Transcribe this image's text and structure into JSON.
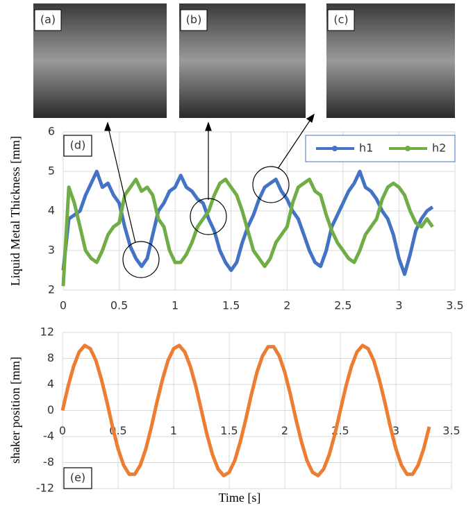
{
  "photos": [
    "(a)",
    "(b)",
    "(c)"
  ],
  "chart_data": [
    {
      "type": "line",
      "annotation": "(d)",
      "y_label": "Liquid Metal Thickness [mm]",
      "x": [
        0,
        0.05,
        0.1,
        0.15,
        0.2,
        0.25,
        0.3,
        0.35,
        0.4,
        0.45,
        0.5,
        0.55,
        0.6,
        0.65,
        0.7,
        0.75,
        0.8,
        0.85,
        0.9,
        0.95,
        1,
        1.05,
        1.1,
        1.15,
        1.2,
        1.25,
        1.3,
        1.35,
        1.4,
        1.45,
        1.5,
        1.55,
        1.6,
        1.65,
        1.7,
        1.75,
        1.8,
        1.85,
        1.9,
        1.95,
        2,
        2.05,
        2.1,
        2.15,
        2.2,
        2.25,
        2.3,
        2.35,
        2.4,
        2.45,
        2.5,
        2.55,
        2.6,
        2.65,
        2.7,
        2.75,
        2.8,
        2.85,
        2.9,
        2.95,
        3,
        3.05,
        3.1,
        3.15,
        3.2,
        3.25,
        3.3
      ],
      "series": [
        {
          "name": "h1",
          "color": "#4472c4",
          "values": [
            2.5,
            3.8,
            3.9,
            4.0,
            4.4,
            4.7,
            5.0,
            4.6,
            4.7,
            4.4,
            4.2,
            3.6,
            3.1,
            2.8,
            2.6,
            2.8,
            3.4,
            4.0,
            4.2,
            4.5,
            4.6,
            4.9,
            4.6,
            4.5,
            4.3,
            4.2,
            3.8,
            3.5,
            3.0,
            2.7,
            2.5,
            2.7,
            3.2,
            3.6,
            3.9,
            4.3,
            4.6,
            4.7,
            4.8,
            4.5,
            4.3,
            4.0,
            3.8,
            3.4,
            3.0,
            2.7,
            2.6,
            3.0,
            3.6,
            3.9,
            4.2,
            4.5,
            4.7,
            5.0,
            4.6,
            4.5,
            4.3,
            4.0,
            3.8,
            3.4,
            2.8,
            2.4,
            2.9,
            3.5,
            3.8,
            4.0,
            4.1
          ]
        },
        {
          "name": "h2",
          "color": "#70ad47",
          "values": [
            2.1,
            4.6,
            4.2,
            3.6,
            3.0,
            2.8,
            2.7,
            3.0,
            3.4,
            3.6,
            3.7,
            4.4,
            4.6,
            4.8,
            4.5,
            4.6,
            4.4,
            3.8,
            3.6,
            3.0,
            2.7,
            2.7,
            2.9,
            3.2,
            3.6,
            3.8,
            4.0,
            4.4,
            4.7,
            4.8,
            4.6,
            4.4,
            4.0,
            3.5,
            3.0,
            2.8,
            2.6,
            2.8,
            3.2,
            3.4,
            3.6,
            4.2,
            4.6,
            4.7,
            4.8,
            4.5,
            4.4,
            3.9,
            3.5,
            3.2,
            3.0,
            2.8,
            2.7,
            3.0,
            3.4,
            3.6,
            3.8,
            4.3,
            4.6,
            4.7,
            4.6,
            4.4,
            4.0,
            3.7,
            3.6,
            3.8,
            3.6
          ]
        }
      ],
      "xlim": [
        0,
        3.5
      ],
      "xticks": [
        0,
        0.5,
        1,
        1.5,
        2,
        2.5,
        3,
        3.5
      ],
      "ylim": [
        2,
        6
      ],
      "yticks": [
        2,
        3,
        4,
        5,
        6
      ],
      "grid": true,
      "legend": "top-right"
    },
    {
      "type": "line",
      "annotation": "(e)",
      "y_label": "shaker position [mm]",
      "x_label": "Time [s]",
      "x": [
        0,
        0.05,
        0.1,
        0.15,
        0.2,
        0.25,
        0.3,
        0.35,
        0.4,
        0.45,
        0.5,
        0.55,
        0.6,
        0.65,
        0.7,
        0.75,
        0.8,
        0.85,
        0.9,
        0.95,
        1,
        1.05,
        1.1,
        1.15,
        1.2,
        1.25,
        1.3,
        1.35,
        1.4,
        1.45,
        1.5,
        1.55,
        1.6,
        1.65,
        1.7,
        1.75,
        1.8,
        1.85,
        1.9,
        1.95,
        2,
        2.05,
        2.1,
        2.15,
        2.2,
        2.25,
        2.3,
        2.35,
        2.4,
        2.45,
        2.5,
        2.55,
        2.6,
        2.65,
        2.7,
        2.75,
        2.8,
        2.85,
        2.9,
        2.95,
        3,
        3.05,
        3.1,
        3.15,
        3.2,
        3.25,
        3.3
      ],
      "series": [
        {
          "color": "#ed7d31",
          "values": [
            0,
            3.7,
            6.8,
            9.0,
            10.0,
            9.5,
            7.7,
            4.8,
            1.3,
            -2.5,
            -5.9,
            -8.4,
            -9.8,
            -9.8,
            -8.4,
            -5.9,
            -2.5,
            1.3,
            4.8,
            7.7,
            9.5,
            10.0,
            9.0,
            6.8,
            3.7,
            0,
            -3.7,
            -6.8,
            -9.0,
            -10.0,
            -9.5,
            -7.7,
            -4.8,
            -1.3,
            2.5,
            5.9,
            8.4,
            9.8,
            9.8,
            8.4,
            5.9,
            2.5,
            -1.3,
            -4.8,
            -7.7,
            -9.5,
            -10.0,
            -9.0,
            -6.8,
            -3.7,
            0,
            3.7,
            6.8,
            9.0,
            10.0,
            9.5,
            7.7,
            4.8,
            1.3,
            -2.5,
            -5.9,
            -8.4,
            -9.8,
            -9.8,
            -8.4,
            -5.9,
            -2.5
          ]
        }
      ],
      "xlim": [
        0,
        3.5
      ],
      "xticks": [
        0,
        0.5,
        1,
        1.5,
        2,
        2.5,
        3,
        3.5
      ],
      "ylim": [
        -12,
        12
      ],
      "yticks": [
        -12,
        -8,
        -4,
        0,
        4,
        8,
        12
      ],
      "grid": true
    }
  ]
}
